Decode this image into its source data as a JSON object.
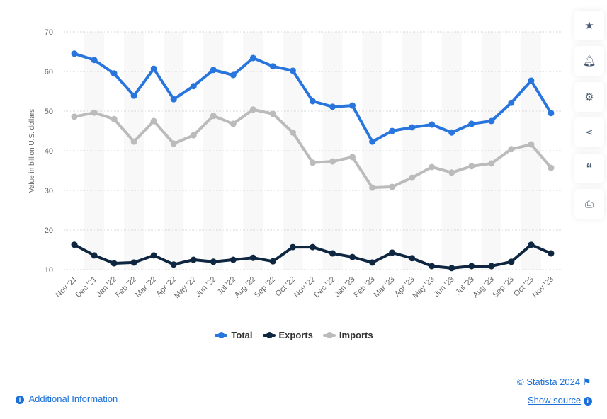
{
  "chart_data": {
    "type": "line",
    "title": "",
    "ylabel": "Value in billion U.S. dollars",
    "xlabel": "",
    "ylim": [
      10,
      70
    ],
    "yticks": [
      10,
      20,
      30,
      40,
      50,
      60,
      70
    ],
    "grid": true,
    "legend_position": "bottom",
    "categories": [
      "Nov '21",
      "Dec '21",
      "Jan '22",
      "Feb '22",
      "Mar '22",
      "Apr '22",
      "May '22",
      "Jun '22",
      "Jul '22",
      "Aug '22",
      "Sep '22",
      "Oct '22",
      "Nov '22",
      "Dec '22",
      "Jan '23",
      "Feb '23",
      "Mar '23",
      "Apr '23",
      "May '23",
      "Jun '23",
      "Jul '23",
      "Aug '23",
      "Sep '23",
      "Oct '23",
      "Nov '23"
    ],
    "series": [
      {
        "name": "Total",
        "color": "#2876dd",
        "values": [
          64.5,
          62.9,
          59.5,
          53.9,
          60.7,
          53.0,
          56.3,
          60.4,
          59.1,
          63.4,
          61.3,
          60.2,
          52.5,
          51.1,
          51.4,
          42.3,
          45.0,
          45.9,
          46.6,
          44.6,
          46.8,
          47.5,
          52.1,
          57.7,
          49.5
        ]
      },
      {
        "name": "Exports",
        "color": "#0f2640",
        "values": [
          16.3,
          13.6,
          11.6,
          11.8,
          13.6,
          11.3,
          12.5,
          12.0,
          12.5,
          13.0,
          12.1,
          15.7,
          15.7,
          14.1,
          13.2,
          11.8,
          14.3,
          12.9,
          10.9,
          10.4,
          10.9,
          10.9,
          12.0,
          16.3,
          14.1
        ]
      },
      {
        "name": "Imports",
        "color": "#bbbbbb",
        "values": [
          48.6,
          49.6,
          48.0,
          42.3,
          47.5,
          41.8,
          43.9,
          48.8,
          46.8,
          50.4,
          49.3,
          44.6,
          37.0,
          37.3,
          38.4,
          30.7,
          30.9,
          33.2,
          35.9,
          34.5,
          36.1,
          36.8,
          40.4,
          41.6,
          35.7
        ]
      }
    ]
  },
  "sidebar": [
    "star-icon",
    "bell-icon",
    "gear-icon",
    "share-icon",
    "quote-icon",
    "print-icon"
  ],
  "footer": {
    "copyright": "© Statista 2024",
    "show_source": "Show source",
    "additional_info": "Additional Information"
  }
}
